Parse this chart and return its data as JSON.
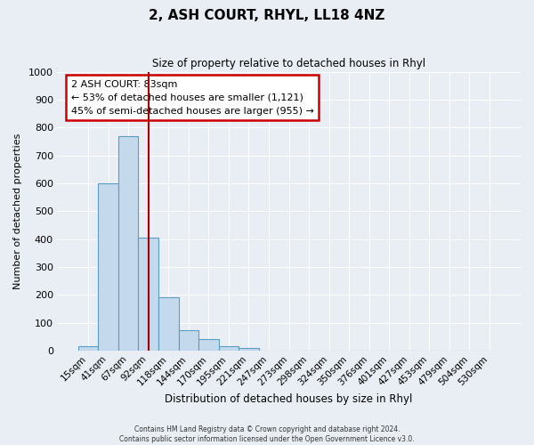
{
  "title": "2, ASH COURT, RHYL, LL18 4NZ",
  "subtitle": "Size of property relative to detached houses in Rhyl",
  "xlabel": "Distribution of detached houses by size in Rhyl",
  "ylabel": "Number of detached properties",
  "bar_labels": [
    "15sqm",
    "41sqm",
    "67sqm",
    "92sqm",
    "118sqm",
    "144sqm",
    "170sqm",
    "195sqm",
    "221sqm",
    "247sqm",
    "273sqm",
    "298sqm",
    "324sqm",
    "350sqm",
    "376sqm",
    "401sqm",
    "427sqm",
    "453sqm",
    "479sqm",
    "504sqm",
    "530sqm"
  ],
  "bar_values": [
    15,
    600,
    770,
    405,
    190,
    75,
    40,
    15,
    10,
    0,
    0,
    0,
    0,
    0,
    0,
    0,
    0,
    0,
    0,
    0,
    0
  ],
  "bar_color": "#c5d9ec",
  "bar_edge_color": "#5b9cc4",
  "marker_label": "2 ASH COURT: 83sqm",
  "annotation_line1": "← 53% of detached houses are smaller (1,121)",
  "annotation_line2": "45% of semi-detached houses are larger (955) →",
  "marker_color": "#aa0000",
  "box_edge_color": "#cc0000",
  "ylim": [
    0,
    1000
  ],
  "yticks": [
    0,
    100,
    200,
    300,
    400,
    500,
    600,
    700,
    800,
    900,
    1000
  ],
  "footer1": "Contains HM Land Registry data © Crown copyright and database right 2024.",
  "footer2": "Contains public sector information licensed under the Open Government Licence v3.0.",
  "background_color": "#e8eef4",
  "plot_background": "#e8eef4",
  "grid_color": "#ffffff"
}
